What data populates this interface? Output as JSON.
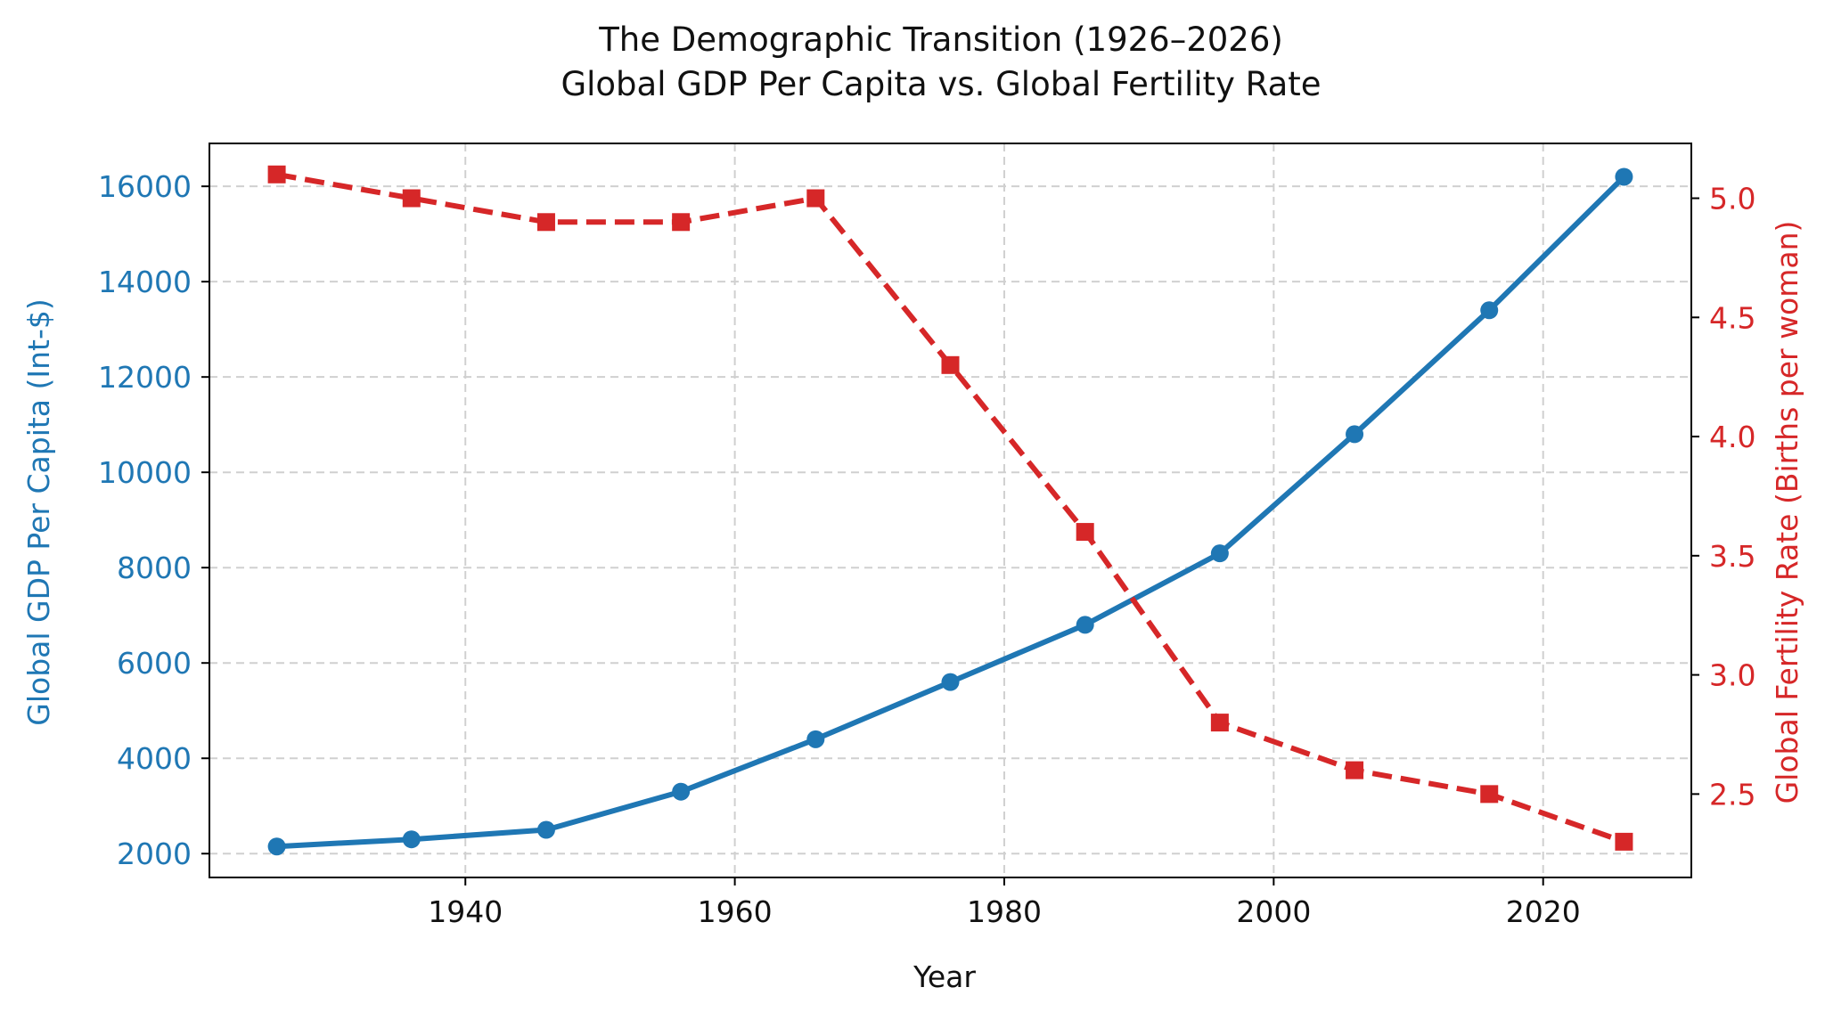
{
  "chart_data": {
    "type": "line",
    "title": "The Demographic Transition (1926–2026)",
    "subtitle": "Global GDP Per Capita vs. Global Fertility Rate",
    "xlabel": "Year",
    "ylabel_left": "Global GDP Per Capita (Int-$)",
    "ylabel_right": "Global Fertility Rate (Births per woman)",
    "x": [
      1926,
      1936,
      1946,
      1956,
      1966,
      1976,
      1986,
      1996,
      2006,
      2016,
      2026
    ],
    "xlim": [
      1921,
      2031
    ],
    "ylim_left": [
      1500,
      16900
    ],
    "ylim_right": [
      2.15,
      5.23
    ],
    "xticks": [
      "1940",
      "1960",
      "1980",
      "2000",
      "2020"
    ],
    "yticks_left": [
      "2000",
      "4000",
      "6000",
      "8000",
      "10000",
      "12000",
      "14000",
      "16000"
    ],
    "yticks_right": [
      "2.5",
      "3.0",
      "3.5",
      "4.0",
      "4.5",
      "5.0"
    ],
    "grid": true,
    "series": [
      {
        "axis": "left",
        "color": "#1f77b4",
        "style": "solid",
        "marker": "circle",
        "values": [
          2150,
          2300,
          2500,
          3300,
          4400,
          5600,
          6800,
          8300,
          10800,
          13400,
          16200
        ]
      },
      {
        "axis": "right",
        "color": "#d62728",
        "style": "dashed",
        "marker": "square",
        "values": [
          5.1,
          5.0,
          4.9,
          4.9,
          5.0,
          4.3,
          3.6,
          2.8,
          2.6,
          2.5,
          2.3
        ]
      }
    ]
  }
}
